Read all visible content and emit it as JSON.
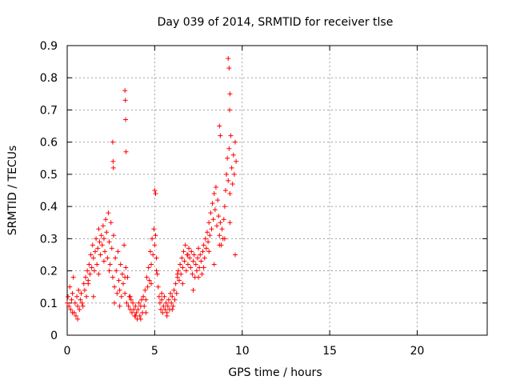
{
  "colors": {
    "series": "#ff0000",
    "grid": "#a0a0a0",
    "axis": "#000000"
  },
  "chart_data": {
    "type": "scatter",
    "title": "Day 039 of 2014, SRMTID for receiver tlse",
    "xlabel": "GPS time / hours",
    "ylabel": "SRMTID / TECUs",
    "xlim": [
      0,
      24
    ],
    "ylim": [
      0,
      0.9
    ],
    "xticks": [
      0,
      5,
      10,
      15,
      20
    ],
    "xtick_labels": [
      "0",
      "5",
      "10",
      "15",
      "20"
    ],
    "yticks": [
      0,
      0.1,
      0.2,
      0.3,
      0.4,
      0.5,
      0.6,
      0.7,
      0.8,
      0.9
    ],
    "ytick_labels": [
      "0",
      "0.1",
      "0.2",
      "0.3",
      "0.4",
      "0.5",
      "0.6",
      "0.7",
      "0.8",
      "0.9"
    ],
    "grid": true,
    "marker": "plus",
    "series": [
      {
        "name": "SRMTID",
        "x": [
          0.0,
          0.05,
          0.1,
          0.15,
          0.2,
          0.25,
          0.3,
          0.35,
          0.4,
          0.45,
          0.5,
          0.55,
          0.6,
          0.65,
          0.7,
          0.75,
          0.8,
          0.85,
          0.9,
          0.95,
          1.0,
          1.05,
          1.1,
          1.15,
          1.2,
          1.25,
          1.3,
          1.35,
          1.4,
          1.45,
          1.5,
          1.55,
          1.6,
          1.65,
          1.7,
          1.75,
          1.8,
          1.85,
          1.9,
          1.95,
          2.0,
          2.05,
          2.1,
          2.15,
          2.2,
          2.25,
          2.3,
          2.35,
          2.4,
          2.45,
          2.5,
          2.55,
          2.6,
          2.65,
          2.7,
          2.75,
          2.8,
          2.85,
          2.9,
          2.95,
          3.0,
          3.05,
          3.1,
          3.15,
          3.2,
          3.25,
          3.3,
          3.35,
          3.4,
          3.45,
          3.5,
          3.55,
          3.6,
          3.65,
          3.7,
          3.75,
          3.8,
          3.85,
          3.9,
          3.95,
          4.0,
          4.05,
          4.1,
          4.15,
          4.2,
          4.25,
          4.3,
          4.35,
          4.4,
          4.45,
          4.5,
          4.55,
          4.6,
          4.65,
          4.7,
          4.75,
          4.8,
          4.85,
          4.9,
          4.95,
          5.0,
          5.05,
          5.1,
          5.15,
          5.2,
          5.25,
          5.3,
          5.35,
          5.4,
          5.45,
          5.5,
          5.55,
          5.6,
          5.65,
          5.7,
          5.75,
          5.8,
          5.85,
          5.9,
          5.95,
          6.0,
          6.05,
          6.1,
          6.15,
          6.2,
          6.25,
          6.3,
          6.35,
          6.4,
          6.45,
          6.5,
          6.55,
          6.6,
          6.65,
          6.7,
          6.75,
          6.8,
          6.85,
          6.9,
          6.95,
          7.0,
          7.05,
          7.1,
          7.15,
          7.2,
          7.25,
          7.3,
          7.35,
          7.4,
          7.45,
          7.5,
          7.55,
          7.6,
          7.65,
          7.7,
          7.75,
          7.8,
          7.85,
          7.9,
          7.95,
          8.0,
          8.05,
          8.1,
          8.15,
          8.2,
          8.25,
          8.3,
          8.35,
          8.4,
          8.45,
          8.5,
          8.55,
          8.6,
          8.65,
          8.7,
          8.75,
          8.8,
          8.85,
          8.9,
          8.95,
          9.0,
          9.05,
          9.1,
          9.15,
          9.2,
          9.25,
          9.3,
          9.35,
          9.4,
          9.45,
          9.5,
          9.55,
          9.6,
          9.65,
          0.3,
          0.6,
          1.2,
          1.5,
          1.8,
          2.1,
          2.4,
          2.7,
          3.0,
          3.3,
          3.6,
          3.9,
          4.2,
          4.5,
          4.8,
          5.1,
          5.4,
          5.7,
          6.0,
          6.3,
          6.6,
          6.9,
          7.2,
          7.5,
          7.8,
          8.1,
          8.4,
          8.7,
          9.0,
          9.3,
          9.6,
          2.6,
          2.62,
          2.64,
          3.3,
          3.32,
          3.34,
          3.36,
          5.0,
          5.05,
          9.2,
          9.25,
          9.3,
          9.28,
          8.7,
          8.75
        ],
        "y": [
          0.1,
          0.12,
          0.09,
          0.15,
          0.08,
          0.11,
          0.13,
          0.18,
          0.07,
          0.1,
          0.06,
          0.12,
          0.09,
          0.14,
          0.08,
          0.11,
          0.13,
          0.1,
          0.09,
          0.16,
          0.14,
          0.18,
          0.12,
          0.2,
          0.17,
          0.22,
          0.19,
          0.25,
          0.21,
          0.28,
          0.24,
          0.2,
          0.26,
          0.3,
          0.22,
          0.27,
          0.33,
          0.29,
          0.25,
          0.31,
          0.28,
          0.34,
          0.3,
          0.26,
          0.36,
          0.32,
          0.24,
          0.38,
          0.29,
          0.22,
          0.35,
          0.27,
          0.18,
          0.31,
          0.15,
          0.24,
          0.2,
          0.13,
          0.26,
          0.17,
          0.14,
          0.22,
          0.12,
          0.19,
          0.16,
          0.28,
          0.13,
          0.21,
          0.1,
          0.18,
          0.09,
          0.12,
          0.08,
          0.11,
          0.07,
          0.1,
          0.08,
          0.06,
          0.09,
          0.07,
          0.05,
          0.08,
          0.1,
          0.06,
          0.09,
          0.11,
          0.07,
          0.12,
          0.09,
          0.14,
          0.11,
          0.18,
          0.15,
          0.21,
          0.17,
          0.26,
          0.22,
          0.3,
          0.25,
          0.33,
          0.28,
          0.31,
          0.24,
          0.19,
          0.15,
          0.12,
          0.1,
          0.08,
          0.11,
          0.07,
          0.09,
          0.12,
          0.08,
          0.1,
          0.06,
          0.09,
          0.11,
          0.08,
          0.13,
          0.1,
          0.12,
          0.09,
          0.14,
          0.11,
          0.16,
          0.13,
          0.18,
          0.2,
          0.17,
          0.22,
          0.19,
          0.24,
          0.21,
          0.26,
          0.23,
          0.28,
          0.2,
          0.25,
          0.22,
          0.27,
          0.24,
          0.21,
          0.26,
          0.19,
          0.23,
          0.25,
          0.18,
          0.22,
          0.2,
          0.24,
          0.27,
          0.21,
          0.25,
          0.23,
          0.19,
          0.26,
          0.28,
          0.24,
          0.3,
          0.27,
          0.32,
          0.29,
          0.35,
          0.31,
          0.38,
          0.33,
          0.41,
          0.36,
          0.44,
          0.39,
          0.46,
          0.34,
          0.42,
          0.37,
          0.31,
          0.35,
          0.28,
          0.33,
          0.3,
          0.36,
          0.4,
          0.45,
          0.5,
          0.55,
          0.48,
          0.58,
          0.44,
          0.62,
          0.52,
          0.47,
          0.56,
          0.5,
          0.6,
          0.54,
          0.07,
          0.05,
          0.16,
          0.12,
          0.19,
          0.23,
          0.2,
          0.1,
          0.09,
          0.18,
          0.12,
          0.06,
          0.05,
          0.07,
          0.16,
          0.2,
          0.13,
          0.07,
          0.08,
          0.19,
          0.16,
          0.25,
          0.14,
          0.18,
          0.21,
          0.26,
          0.22,
          0.28,
          0.3,
          0.35,
          0.25,
          0.6,
          0.54,
          0.52,
          0.76,
          0.73,
          0.67,
          0.57,
          0.45,
          0.44,
          0.86,
          0.83,
          0.75,
          0.7,
          0.65,
          0.62
        ]
      }
    ]
  }
}
